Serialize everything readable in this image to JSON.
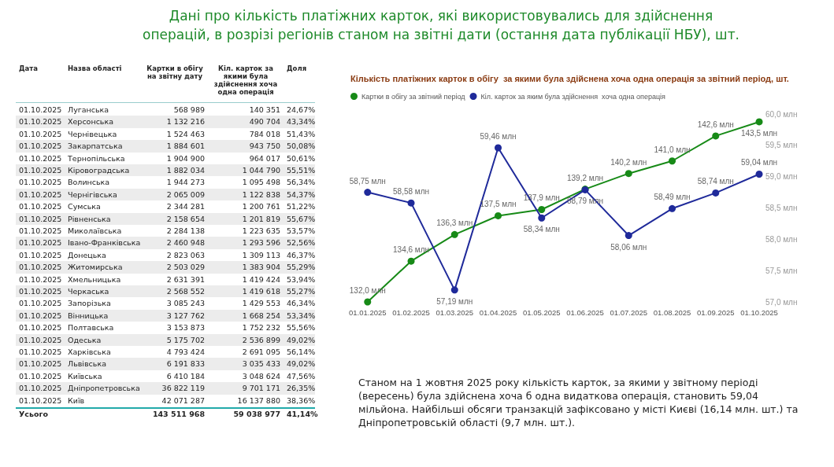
{
  "chart_data": [
    {
      "type": "other",
      "title": "Дані про кількість платіжних карток, які використовувались для здійснення операцій, в розрізі регіонів станом на звітні дати (остання дата публікації НБУ), шт.",
      "ylabel": "Назва області",
      "categories": [
        "Луганська",
        "Херсонська",
        "Чернівецька",
        "Закарпатська",
        "Тернопільська",
        "Кіровоградська",
        "Волинська",
        "Чернігівська",
        "Сумська",
        "Рівненська",
        "Миколаївська",
        "Івано-Франківська",
        "Донецька",
        "Житомирська",
        "Хмельницька",
        "Черкаська",
        "Запорізька",
        "Вінницька",
        "Полтавська",
        "Одеська",
        "Харківська",
        "Львівська",
        "Київська",
        "Дніпропетровська",
        "Київ",
        "Усього"
      ],
      "series": [
        {
          "name": "Дата",
          "values": [
            null,
            null,
            null,
            null,
            null,
            null,
            null,
            null,
            null,
            null,
            null,
            null,
            null,
            null,
            null,
            null,
            null,
            null,
            null,
            null,
            null,
            null,
            null,
            null,
            null,
            null
          ],
          "value_labels": [
            "01.10.2025",
            "01.10.2025",
            "01.10.2025",
            "01.10.2025",
            "01.10.2025",
            "01.10.2025",
            "01.10.2025",
            "01.10.2025",
            "01.10.2025",
            "01.10.2025",
            "01.10.2025",
            "01.10.2025",
            "01.10.2025",
            "01.10.2025",
            "01.10.2025",
            "01.10.2025",
            "01.10.2025",
            "01.10.2025",
            "01.10.2025",
            "01.10.2025",
            "01.10.2025",
            "01.10.2025",
            "01.10.2025",
            "01.10.2025",
            "01.10.2025",
            null
          ]
        },
        {
          "name": "Картки в обігу на звітну дату",
          "values": [
            568989,
            1132216,
            1524463,
            1884601,
            1904900,
            1882034,
            1944273,
            2065009,
            2344281,
            2158654,
            2284138,
            2460948,
            2823063,
            2503029,
            2631391,
            2568552,
            3085243,
            3127762,
            3153873,
            5175702,
            4793424,
            6191833,
            6410184,
            36822119,
            42071287,
            143511968
          ],
          "value_labels": [
            "568 989",
            "1 132 216",
            "1 524 463",
            "1 884 601",
            "1 904 900",
            "1 882 034",
            "1 944 273",
            "2 065 009",
            "2 344 281",
            "2 158 654",
            "2 284 138",
            "2 460 948",
            "2 823 063",
            "2 503 029",
            "2 631 391",
            "2 568 552",
            "3 085 243",
            "3 127 762",
            "3 153 873",
            "5 175 702",
            "4 793 424",
            "6 191 833",
            "6 410 184",
            "36 822 119",
            "42 071 287",
            "143 511 968"
          ]
        },
        {
          "name": "Кіл. карток за якими була здійснення хоча одна операція",
          "values": [
            140351,
            490704,
            784018,
            943750,
            964017,
            1044790,
            1095498,
            1122838,
            1200761,
            1201819,
            1223635,
            1293596,
            1309113,
            1383904,
            1419424,
            1419618,
            1429553,
            1668254,
            1752232,
            2536899,
            2691095,
            3035433,
            3048624,
            9701171,
            16137880,
            59038977
          ],
          "value_labels": [
            "140 351",
            "490 704",
            "784 018",
            "943 750",
            "964 017",
            "1 044 790",
            "1 095 498",
            "1 122 838",
            "1 200 761",
            "1 201 819",
            "1 223 635",
            "1 293 596",
            "1 309 113",
            "1 383 904",
            "1 419 424",
            "1 419 618",
            "1 429 553",
            "1 668 254",
            "1 752 232",
            "2 536 899",
            "2 691 095",
            "3 035 433",
            "3 048 624",
            "9 701 171",
            "16 137 880",
            "59 038 977"
          ]
        },
        {
          "name": "Доля",
          "values": [
            24.67,
            43.34,
            51.43,
            50.08,
            50.61,
            55.51,
            56.34,
            54.37,
            51.22,
            55.67,
            53.57,
            52.56,
            46.37,
            55.29,
            53.94,
            55.27,
            46.34,
            53.34,
            55.56,
            49.02,
            56.14,
            49.02,
            47.56,
            26.35,
            38.36,
            41.14
          ],
          "value_labels": [
            "24,67%",
            "43,34%",
            "51,43%",
            "50,08%",
            "50,61%",
            "55,51%",
            "56,34%",
            "54,37%",
            "51,22%",
            "55,67%",
            "53,57%",
            "52,56%",
            "46,37%",
            "55,29%",
            "53,94%",
            "55,27%",
            "46,34%",
            "53,34%",
            "55,56%",
            "49,02%",
            "56,14%",
            "49,02%",
            "47,56%",
            "26,35%",
            "38,36%",
            "41,14%"
          ]
        }
      ]
    },
    {
      "type": "line",
      "title": "Кількість платіжних карток в обігу  за якими була здійснена хоча одна операція за звітний період, шт.",
      "categories": [
        "01.01.2025",
        "01.02.2025",
        "01.03.2025",
        "01.04.2025",
        "01.05.2025",
        "01.06.2025",
        "01.07.2025",
        "01.08.2025",
        "01.09.2025",
        "01.10.2025"
      ],
      "series": [
        {
          "name": "Картки в обігу за звітний період",
          "color": "#178a17",
          "values": [
            132.0,
            134.6,
            136.3,
            137.5,
            137.9,
            139.2,
            140.2,
            141.0,
            142.6,
            143.5
          ],
          "value_labels": [
            "132,0 млн",
            "134,6 млн",
            "136,3 млн",
            "137,5 млн",
            "137,9 млн",
            "139,2 млн",
            "140,2 млн",
            "141,0 млн",
            "142,6 млн",
            "143,5 млн"
          ]
        },
        {
          "name": "Кіл. карток за яким була здійснення  хоча одна операція",
          "color": "#1f2a9a",
          "axis": "y2",
          "values": [
            58.75,
            58.58,
            57.19,
            59.46,
            58.34,
            58.79,
            58.06,
            58.49,
            58.74,
            59.04
          ],
          "value_labels": [
            "58,75 млн",
            "58,58 млн",
            "57,19 млн",
            "59,46 млн",
            "58,34 млн",
            "58,79 млн",
            "58,06 млн",
            "58,49 млн",
            "58,74 млн",
            "59,04 млн"
          ]
        }
      ],
      "y2lim": [
        57,
        60
      ],
      "y2ticks": [
        {
          "value": 57,
          "label": "57,0 млн"
        },
        {
          "value": 57.5,
          "label": "57,5 млн"
        },
        {
          "value": 58,
          "label": "58,0 млн"
        },
        {
          "value": 58.5,
          "label": "58,5 млн"
        },
        {
          "value": 59,
          "label": "59,0 млн"
        },
        {
          "value": 59.5,
          "label": "59,5 млн"
        },
        {
          "value": 60,
          "label": "60,0 млн"
        }
      ],
      "tick_labels": [
        "x",
        "y2"
      ],
      "legend": "top left",
      "marker": "circle",
      "line_style": "solid",
      "grid": false,
      "annotations": [
        "Станом на 1 жовтня 2025 року кількість карток, за якими у звітному періоді (вересень) була здійснена хоча б одна видаткова операція, становить 59,04 мільйона. Найбільші обсяги транзакцій зафіксовано у місті Києві (16,14 млн. шт.) та Дніпропетровській області (9,7 млн. шт.)."
      ]
    }
  ]
}
